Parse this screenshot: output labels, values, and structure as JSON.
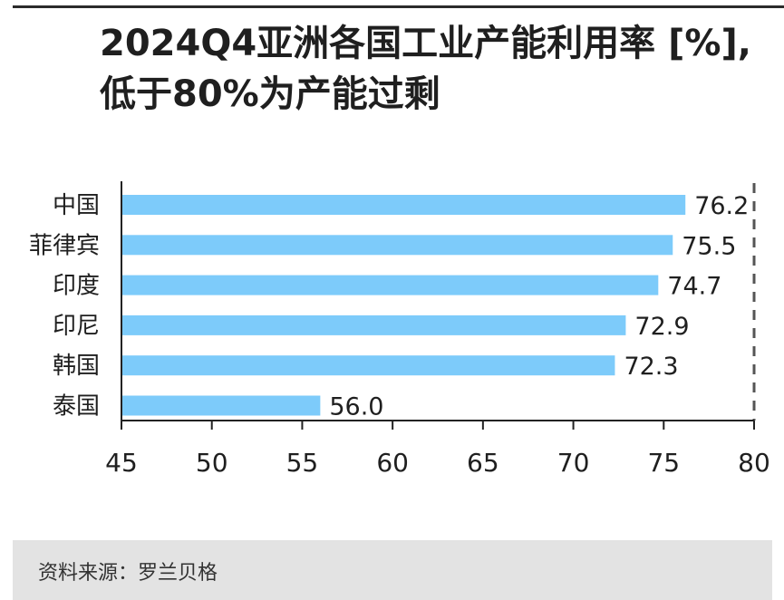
{
  "title_lines": [
    "2024Q4亚洲各国工业产能利用率 [%],",
    "低于80%为产能过剩"
  ],
  "source": "资料来源：罗兰贝格",
  "colors": {
    "bar": "#7dcbfa",
    "text": "#1f1f1f",
    "axis": "#222222",
    "threshold": "#555555",
    "footer_bg": "#e3e3e3"
  },
  "chart_data": {
    "type": "bar",
    "orientation": "horizontal",
    "categories": [
      "中国",
      "菲律宾",
      "印度",
      "印尼",
      "韩国",
      "泰国"
    ],
    "values": [
      76.2,
      75.5,
      74.7,
      72.9,
      72.3,
      56.0
    ],
    "value_labels": [
      "76.2",
      "75.5",
      "74.7",
      "72.9",
      "72.3",
      "56.0"
    ],
    "xlim": [
      45,
      80
    ],
    "xticks": [
      45,
      50,
      55,
      60,
      65,
      70,
      75,
      80
    ],
    "threshold": 80,
    "threshold_style": "dashed",
    "grid": false,
    "title": "2024Q4亚洲各国工业产能利用率 [%]，低于80%为产能过剩",
    "xlabel": "",
    "ylabel": ""
  }
}
